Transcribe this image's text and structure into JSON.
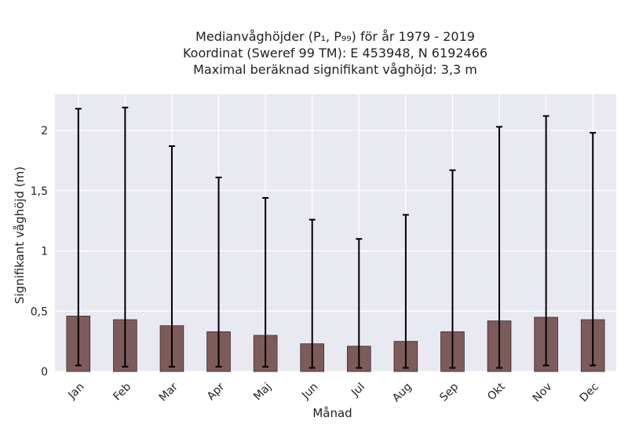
{
  "chart_data": {
    "type": "bar",
    "title_lines": [
      "Medianvåghöjder (P₁, P₉₉) för år 1979 - 2019",
      "Koordinat (Sweref 99 TM): E 453948, N 6192466",
      "Maximal beräknad signifikant våghöjd: 3,3 m"
    ],
    "xlabel": "Månad",
    "ylabel": "Signifikant våghöjd (m)",
    "categories": [
      "Jan",
      "Feb",
      "Mar",
      "Apr",
      "Maj",
      "Jun",
      "Jul",
      "Aug",
      "Sep",
      "Okt",
      "Nov",
      "Dec"
    ],
    "values": [
      0.46,
      0.43,
      0.38,
      0.33,
      0.3,
      0.23,
      0.21,
      0.25,
      0.33,
      0.42,
      0.45,
      0.43
    ],
    "err_low": [
      0.05,
      0.04,
      0.04,
      0.04,
      0.04,
      0.03,
      0.03,
      0.03,
      0.03,
      0.03,
      0.05,
      0.05
    ],
    "err_high": [
      2.18,
      2.19,
      1.87,
      1.61,
      1.44,
      1.26,
      1.1,
      1.3,
      1.67,
      2.03,
      2.12,
      1.98
    ],
    "ylim": [
      0,
      2.3
    ],
    "yticks": [
      0,
      0.5,
      1,
      1.5,
      2
    ],
    "ytick_labels": [
      "0",
      "0,5",
      "1",
      "1,5",
      "2"
    ],
    "grid": true,
    "bar_color": "#7e5b5b",
    "bar_edge_color": "#3a2a2a",
    "errorbar_color": "#000000",
    "plot_background": "#e9e9f2",
    "grid_color": "#ffffff"
  }
}
